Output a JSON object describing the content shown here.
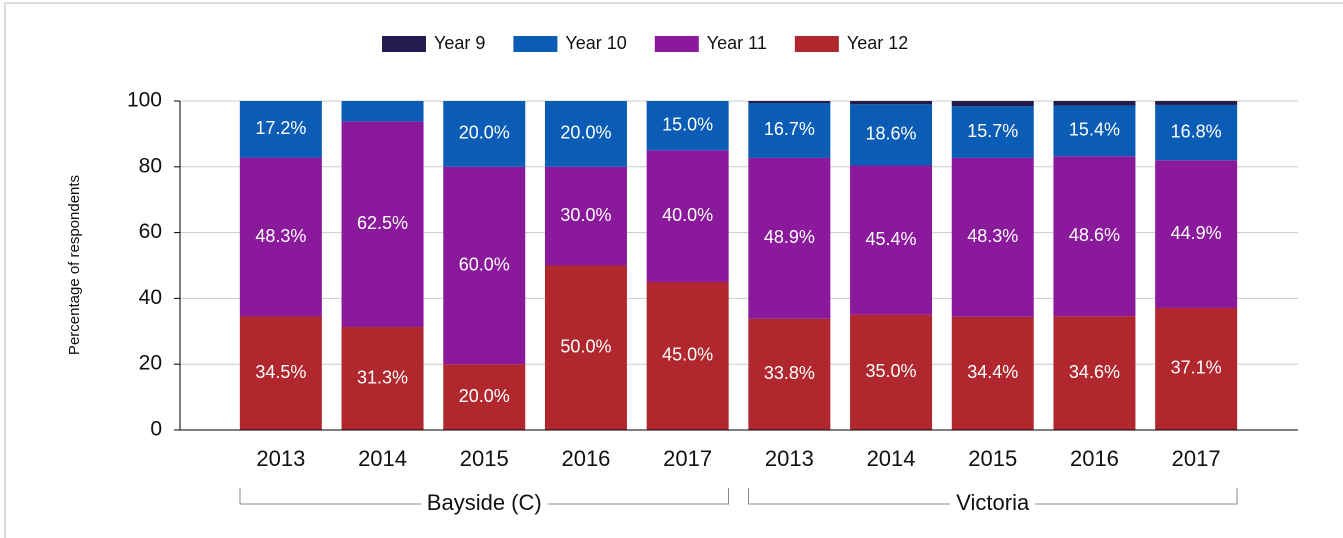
{
  "chart_data": {
    "type": "stacked_bar",
    "y_axis_label": "Percentage of respondents",
    "categories": [
      "2013",
      "2014",
      "2015",
      "2016",
      "2017",
      "2013",
      "2014",
      "2015",
      "2016",
      "2017"
    ],
    "groups": [
      "Bayside (C)",
      "Victoria"
    ],
    "ylim": [
      0,
      100
    ],
    "yticks": [
      0,
      20,
      40,
      60,
      80,
      100
    ],
    "grid": true,
    "series": [
      {
        "name": "Year 9",
        "color": "#221c4e",
        "values": [
          0,
          0,
          0,
          0,
          0,
          0.6,
          1.0,
          1.6,
          1.4,
          1.2
        ],
        "value_labels": [
          null,
          null,
          null,
          null,
          null,
          null,
          null,
          null,
          null,
          null
        ]
      },
      {
        "name": "Year 10",
        "color": "#0b5cb5",
        "values": [
          17.2,
          6.2,
          20.0,
          20.0,
          15.0,
          16.7,
          18.6,
          15.7,
          15.4,
          16.8
        ],
        "value_labels": [
          "17.2%",
          null,
          "20.0%",
          "20.0%",
          "15.0%",
          "16.7%",
          "18.6%",
          "15.7%",
          "15.4%",
          "16.8%"
        ]
      },
      {
        "name": "Year 11",
        "color": "#8a1a9b",
        "values": [
          48.3,
          62.5,
          60.0,
          30.0,
          40.0,
          48.9,
          45.4,
          48.3,
          48.6,
          44.9
        ],
        "value_labels": [
          "48.3%",
          "62.5%",
          "60.0%",
          "30.0%",
          "40.0%",
          "48.9%",
          "45.4%",
          "48.3%",
          "48.6%",
          "44.9%"
        ]
      },
      {
        "name": "Year 12",
        "color": "#b0282e",
        "values": [
          34.5,
          31.3,
          20.0,
          50.0,
          45.0,
          33.8,
          35.0,
          34.4,
          34.6,
          37.1
        ],
        "value_labels": [
          "34.5%",
          "31.3%",
          "20.0%",
          "50.0%",
          "45.0%",
          "33.8%",
          "35.0%",
          "34.4%",
          "34.6%",
          "37.1%"
        ]
      }
    ]
  }
}
